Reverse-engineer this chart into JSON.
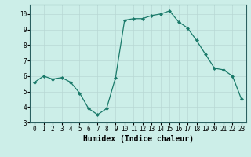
{
  "x": [
    0,
    1,
    2,
    3,
    4,
    5,
    6,
    7,
    8,
    9,
    10,
    11,
    12,
    13,
    14,
    15,
    16,
    17,
    18,
    19,
    20,
    21,
    22,
    23
  ],
  "y": [
    5.6,
    6.0,
    5.8,
    5.9,
    5.6,
    4.9,
    3.9,
    3.5,
    3.9,
    5.9,
    9.6,
    9.7,
    9.7,
    9.9,
    10.0,
    10.2,
    9.5,
    9.1,
    8.3,
    7.4,
    6.5,
    6.4,
    6.0,
    4.5
  ],
  "line_color": "#1a7a6a",
  "marker_color": "#1a7a6a",
  "bg_color": "#cceee8",
  "grid_color": "#b8d8d4",
  "xlabel": "Humidex (Indice chaleur)",
  "ylim": [
    3,
    10.6
  ],
  "xlim": [
    -0.5,
    23.5
  ],
  "yticks": [
    3,
    4,
    5,
    6,
    7,
    8,
    9,
    10
  ],
  "xticks": [
    0,
    1,
    2,
    3,
    4,
    5,
    6,
    7,
    8,
    9,
    10,
    11,
    12,
    13,
    14,
    15,
    16,
    17,
    18,
    19,
    20,
    21,
    22,
    23
  ],
  "label_fontsize": 6.5,
  "tick_fontsize": 5.5,
  "xlabel_fontsize": 7.0
}
